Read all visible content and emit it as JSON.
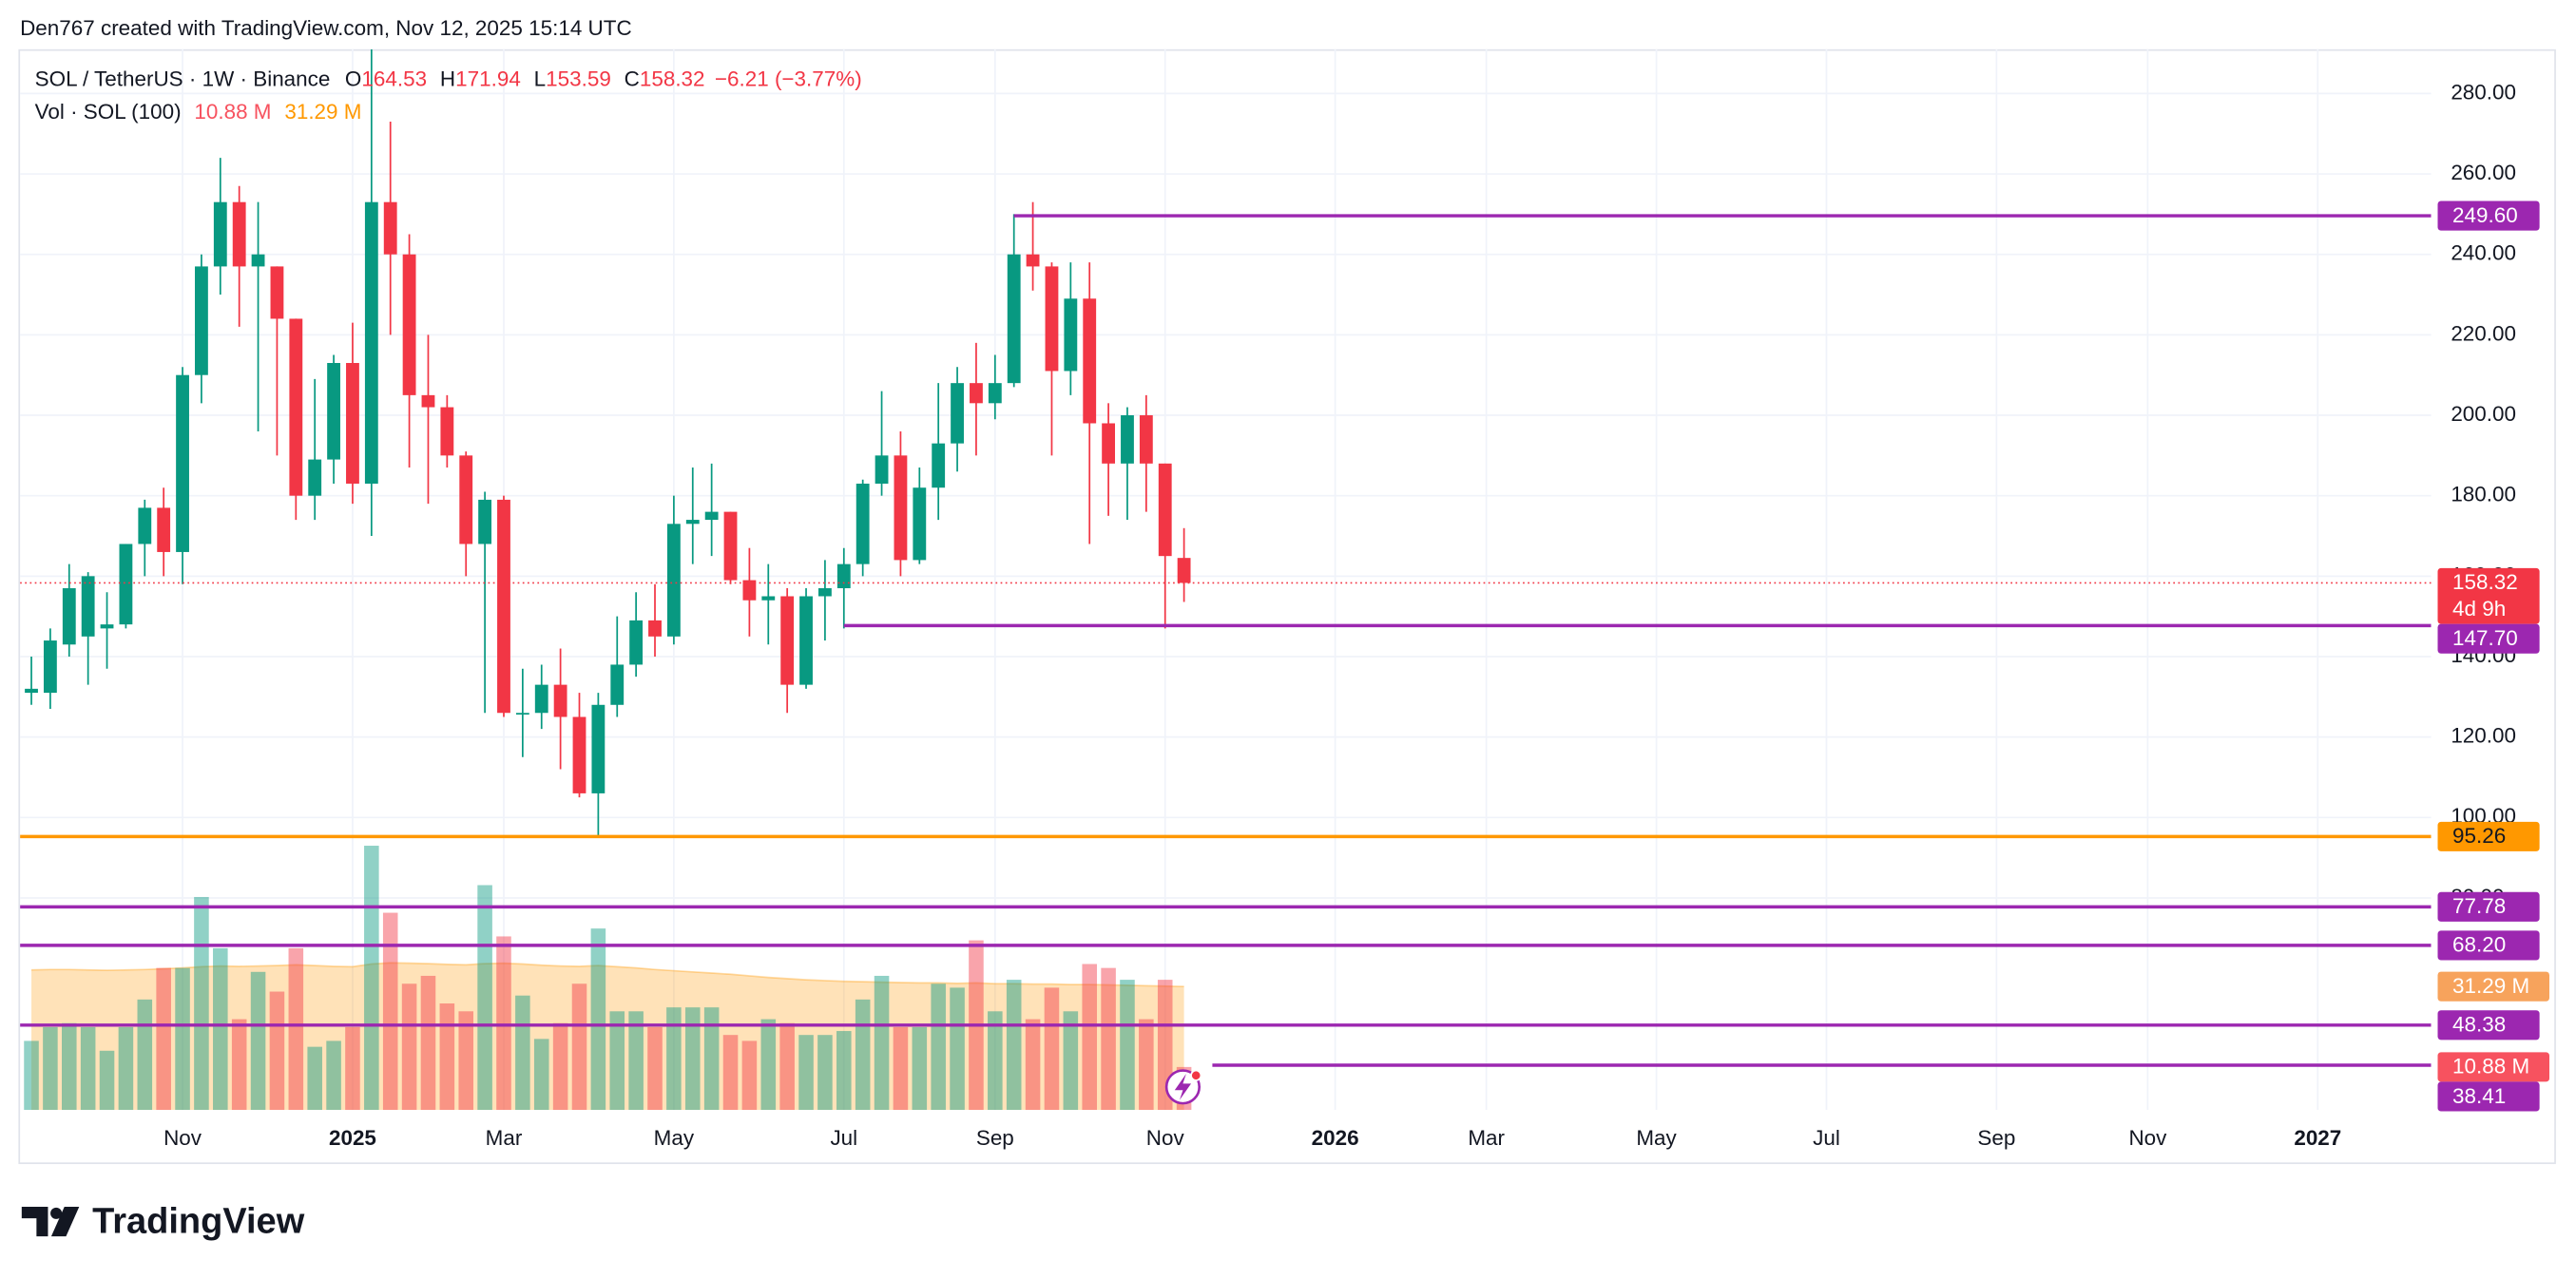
{
  "header": {
    "attribution": "Den767 created with TradingView.com, Nov 12, 2025 15:14 UTC"
  },
  "footer": {
    "brand": "TradingView"
  },
  "chart_data": {
    "type": "candlestick",
    "title": "SOL / TetherUS · 1W · Binance",
    "legend": {
      "o": "O",
      "h": "H",
      "l": "L",
      "c": "C",
      "change": "−6.21 (−3.77%)",
      "volume_title": "Vol · SOL (100)"
    },
    "up_color": "#089981",
    "down_color": "#f23645",
    "open": [
      131,
      131,
      143,
      145,
      147,
      148,
      168,
      177,
      166,
      210,
      237,
      253,
      237,
      237,
      224,
      180,
      189,
      213,
      183,
      253,
      240,
      205,
      202,
      190,
      168,
      179,
      126,
      126,
      133,
      125,
      106,
      128,
      138,
      149,
      145,
      173,
      174,
      176,
      159,
      154,
      155,
      133,
      155,
      157,
      163,
      183,
      190,
      164,
      182,
      193,
      208,
      203,
      208,
      240,
      237,
      211,
      229,
      198,
      188,
      200,
      188,
      164.53
    ],
    "high": [
      140,
      147,
      163,
      161,
      156,
      168,
      179,
      182,
      212,
      240,
      264,
      257,
      253,
      237,
      224,
      209,
      215,
      223,
      291,
      273,
      245,
      220,
      205,
      191,
      181,
      180,
      137,
      138,
      142,
      131,
      131,
      150,
      156,
      158,
      180,
      187,
      188,
      176,
      167,
      163,
      157,
      157,
      164,
      167,
      184,
      206,
      196,
      187,
      208,
      212,
      218,
      215,
      250,
      253,
      238,
      238,
      238,
      203,
      202,
      205,
      188,
      171.94
    ],
    "low": [
      128,
      127,
      140,
      133,
      137,
      147,
      160,
      160,
      158,
      203,
      230,
      222,
      196,
      190,
      174,
      174,
      183,
      178,
      170,
      220,
      187,
      178,
      187,
      160,
      126,
      125,
      115,
      122,
      112,
      105,
      95,
      125,
      135,
      140,
      143,
      163,
      165,
      158,
      145,
      143,
      126,
      132,
      144,
      147,
      160,
      180,
      160,
      163,
      174,
      186,
      190,
      199,
      207,
      231,
      190,
      205,
      168,
      175,
      174,
      176,
      147,
      153.59
    ],
    "close": [
      132,
      144,
      157,
      160,
      148,
      168,
      177,
      166,
      210,
      237,
      253,
      237,
      240,
      224,
      180,
      189,
      213,
      183,
      253,
      240,
      205,
      202,
      190,
      168,
      179,
      126,
      126,
      133,
      125,
      106,
      128,
      138,
      149,
      145,
      173,
      174,
      176,
      159,
      154,
      155,
      133,
      155,
      157,
      163,
      183,
      190,
      164,
      182,
      193,
      208,
      203,
      208,
      240,
      237,
      211,
      229,
      198,
      188,
      200,
      188,
      165,
      158.32
    ],
    "volume": [
      17.5,
      21,
      22,
      21,
      15,
      21,
      28,
      36,
      36,
      54,
      41,
      23,
      35,
      30,
      41,
      16,
      17.5,
      21,
      67,
      50,
      32,
      34,
      27,
      25,
      57,
      44,
      29,
      18,
      22,
      32,
      46,
      25,
      25,
      21,
      26,
      26,
      26,
      19,
      17.5,
      23,
      22,
      19,
      19,
      20,
      28,
      34,
      21,
      21,
      32,
      31,
      43,
      25,
      33,
      23,
      31,
      25,
      37,
      36,
      33,
      23,
      33,
      10.88
    ],
    "volume_value_label": "10.88 M",
    "volume_ma": [
      35.5,
      35.6,
      35.6,
      35.5,
      35.4,
      35.5,
      35.6,
      35.8,
      36,
      36.3,
      36.5,
      36.4,
      36.5,
      36.6,
      36.8,
      36.6,
      36.4,
      36.3,
      37,
      37.3,
      37.2,
      37.1,
      36.9,
      36.8,
      37.1,
      37.2,
      37,
      36.7,
      36.5,
      36.4,
      36.6,
      36.3,
      36,
      35.6,
      35.3,
      35,
      34.7,
      34.4,
      34,
      33.6,
      33.3,
      33,
      32.8,
      32.6,
      32.5,
      32.4,
      32.3,
      32.2,
      32.2,
      32.1,
      32.2,
      32,
      32,
      31.9,
      31.9,
      31.8,
      31.8,
      31.7,
      31.6,
      31.5,
      31.4,
      31.29
    ],
    "volume_ma_value_label": "31.29 M",
    "volume_ma_color": "#ff9800",
    "volume_ylim": [
      0,
      269
    ],
    "countdown": "4d 9h",
    "xlim": [
      -0.6,
      127
    ],
    "xticks": [
      {
        "value": 8,
        "label": "Nov"
      },
      {
        "value": 17,
        "label": "2025"
      },
      {
        "value": 25,
        "label": "Mar"
      },
      {
        "value": 34,
        "label": "May"
      },
      {
        "value": 43,
        "label": "Jul"
      },
      {
        "value": 51,
        "label": "Sep"
      },
      {
        "value": 60,
        "label": "Nov"
      },
      {
        "value": 69,
        "label": "2026"
      },
      {
        "value": 77,
        "label": "Mar"
      },
      {
        "value": 86,
        "label": "May"
      },
      {
        "value": 95,
        "label": "Jul"
      },
      {
        "value": 104,
        "label": "Sep"
      },
      {
        "value": 112,
        "label": "Nov"
      },
      {
        "value": 121,
        "label": "2027"
      }
    ],
    "ylim": [
      27.3,
      291
    ],
    "yticks": [
      {
        "value": 80,
        "label": "80.00"
      },
      {
        "value": 100,
        "label": "100.00"
      },
      {
        "value": 120,
        "label": "120.00"
      },
      {
        "value": 140,
        "label": "140.00"
      },
      {
        "value": 160,
        "label": "160.00"
      },
      {
        "value": 180,
        "label": "180.00"
      },
      {
        "value": 200,
        "label": "200.00"
      },
      {
        "value": 220,
        "label": "220.00"
      },
      {
        "value": 240,
        "label": "240.00"
      },
      {
        "value": 260,
        "label": "260.00"
      },
      {
        "value": 280,
        "label": "280.00"
      }
    ],
    "grid": true,
    "price_lines": [
      {
        "value": 249.6,
        "label": "249.60",
        "from": 52,
        "color": "#9c27b0"
      },
      {
        "value": 147.7,
        "label": "147.70",
        "from": 43,
        "color": "#9c27b0"
      },
      {
        "value": 95.26,
        "label": "95.26",
        "color": "#ff9800"
      },
      {
        "value": 77.78,
        "label": "77.78",
        "color": "#9c27b0"
      },
      {
        "value": 68.2,
        "label": "68.20",
        "color": "#9c27b0"
      },
      {
        "value": 48.38,
        "label": "48.38",
        "color": "#9c27b0"
      },
      {
        "value": 38.41,
        "label": "38.41",
        "from": 62.5,
        "color": "#9c27b0"
      }
    ]
  }
}
